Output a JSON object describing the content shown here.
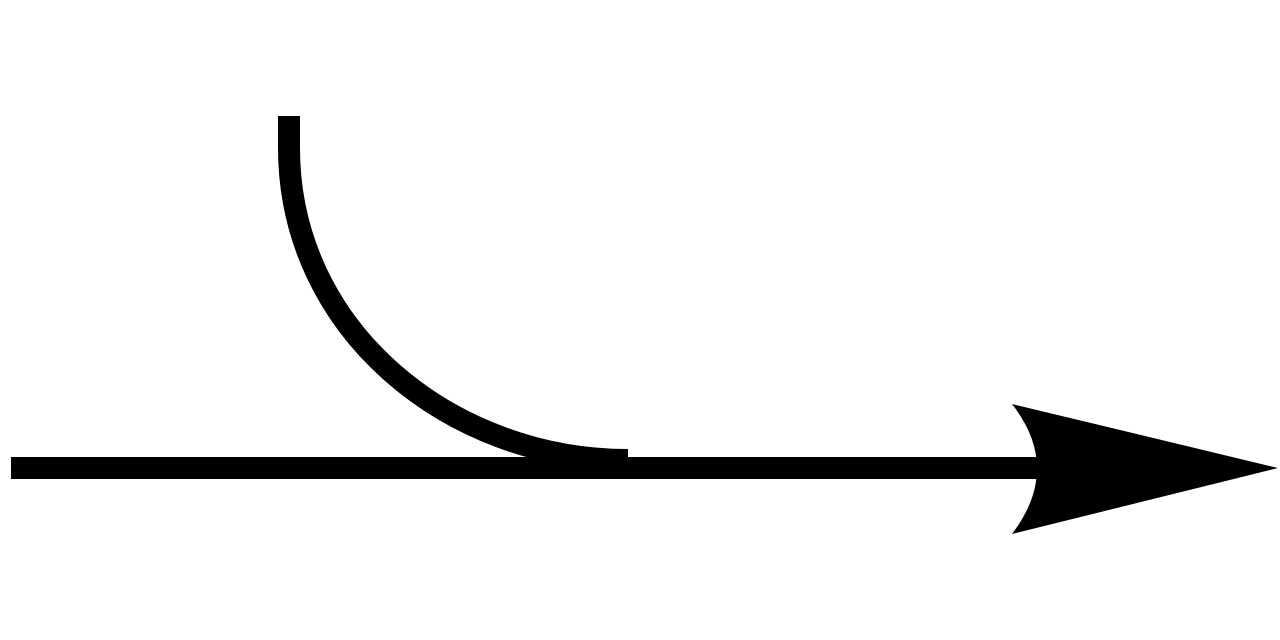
{
  "diagram": {
    "background_color": "#ffffff",
    "stroke_color": "#000000",
    "symbol": "merge-arrow",
    "elements": [
      {
        "kind": "main-line",
        "icon": "straight-line"
      },
      {
        "kind": "merging-curve",
        "icon": "quarter-circle-curve"
      },
      {
        "kind": "arrowhead",
        "icon": "arrowhead-right"
      }
    ]
  }
}
